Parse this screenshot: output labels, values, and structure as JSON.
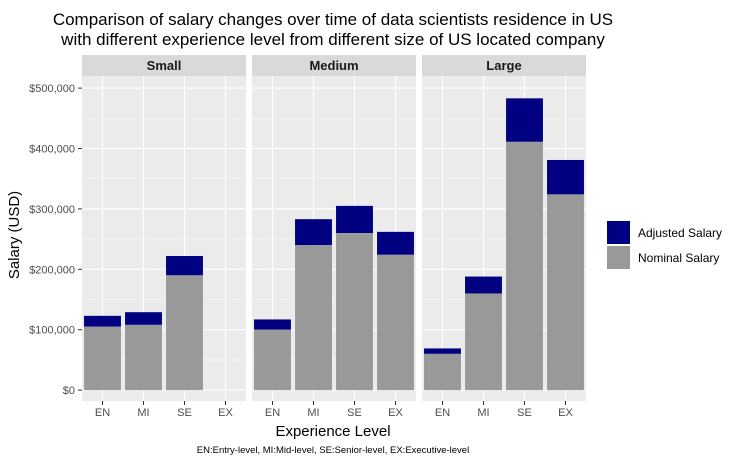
{
  "chart_data": {
    "type": "bar",
    "stacked": true,
    "title_lines": [
      "Comparison of salary changes over time of data scientists residence in US",
      "with different experience level from different size of US located company"
    ],
    "xlabel": "Experience Level",
    "ylabel": "Salary (USD)",
    "caption": "EN:Entry-level, MI:Mid-level, SE:Senior-level, EX:Executive-level",
    "categories": [
      "EN",
      "MI",
      "SE",
      "EX"
    ],
    "y_ticks": [
      "$0",
      "$100,000",
      "$200,000",
      "$300,000",
      "$400,000",
      "$500,000"
    ],
    "y_tick_values": [
      0,
      100000,
      200000,
      300000,
      400000,
      500000
    ],
    "ylim": [
      -18000,
      520000
    ],
    "grid": true,
    "legend_position": "right",
    "legend": [
      {
        "label": "Adjusted Salary",
        "color": "#000080"
      },
      {
        "label": "Nominal Salary",
        "color": "#999999"
      }
    ],
    "panels": [
      {
        "name": "Small",
        "bars": [
          {
            "category": "EN",
            "nominal": 105000,
            "adjusted_total": 123000
          },
          {
            "category": "MI",
            "nominal": 108000,
            "adjusted_total": 129000
          },
          {
            "category": "SE",
            "nominal": 190000,
            "adjusted_total": 222000
          },
          {
            "category": "EX",
            "nominal": null,
            "adjusted_total": null
          }
        ]
      },
      {
        "name": "Medium",
        "bars": [
          {
            "category": "EN",
            "nominal": 100000,
            "adjusted_total": 117000
          },
          {
            "category": "MI",
            "nominal": 240000,
            "adjusted_total": 283000
          },
          {
            "category": "SE",
            "nominal": 260000,
            "adjusted_total": 305000
          },
          {
            "category": "EX",
            "nominal": 224000,
            "adjusted_total": 262000
          }
        ]
      },
      {
        "name": "Large",
        "bars": [
          {
            "category": "EN",
            "nominal": 60000,
            "adjusted_total": 69000
          },
          {
            "category": "MI",
            "nominal": 160000,
            "adjusted_total": 188000
          },
          {
            "category": "SE",
            "nominal": 411000,
            "adjusted_total": 483000
          },
          {
            "category": "EX",
            "nominal": 324000,
            "adjusted_total": 381000
          }
        ]
      }
    ]
  }
}
